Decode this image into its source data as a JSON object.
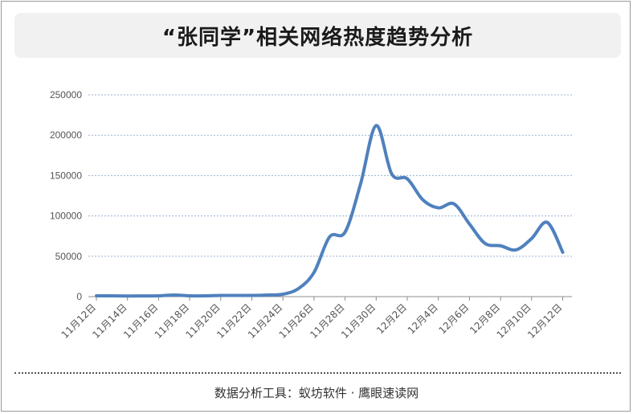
{
  "title": "“张同学”相关网络热度趋势分析",
  "footer": "数据分析工具：蚁坊软件 · 鹰眼速读网",
  "chart_data": {
    "type": "line",
    "ylim": [
      0,
      250000
    ],
    "yticks": [
      0,
      50000,
      100000,
      150000,
      200000,
      250000
    ],
    "grid": true,
    "line_color": "#4f81bd",
    "xtick_labels": [
      "11月12日",
      "11月14日",
      "11月16日",
      "11月18日",
      "11月20日",
      "11月22日",
      "11月24日",
      "11月26日",
      "11月28日",
      "11月30日",
      "12月2日",
      "12月4日",
      "12月6日",
      "12月8日",
      "12月10日",
      "12月12日"
    ],
    "x": [
      "11月12日",
      "11月13日",
      "11月14日",
      "11月15日",
      "11月16日",
      "11月17日",
      "11月18日",
      "11月19日",
      "11月20日",
      "11月21日",
      "11月22日",
      "11月23日",
      "11月24日",
      "11月25日",
      "11月26日",
      "11月27日",
      "11月28日",
      "11月29日",
      "11月30日",
      "12月1日",
      "12月2日",
      "12月3日",
      "12月4日",
      "12月5日",
      "12月6日",
      "12月7日",
      "12月8日",
      "12月9日",
      "12月10日",
      "12月11日",
      "12月12日"
    ],
    "series": [
      {
        "values": [
          1000,
          1000,
          800,
          900,
          1000,
          2000,
          1000,
          1000,
          1500,
          1500,
          1500,
          2000,
          3000,
          10000,
          30000,
          74000,
          80000,
          140000,
          212000,
          152000,
          146000,
          120000,
          110000,
          115000,
          90000,
          66000,
          63000,
          58000,
          72000,
          92000,
          55000
        ]
      }
    ]
  }
}
